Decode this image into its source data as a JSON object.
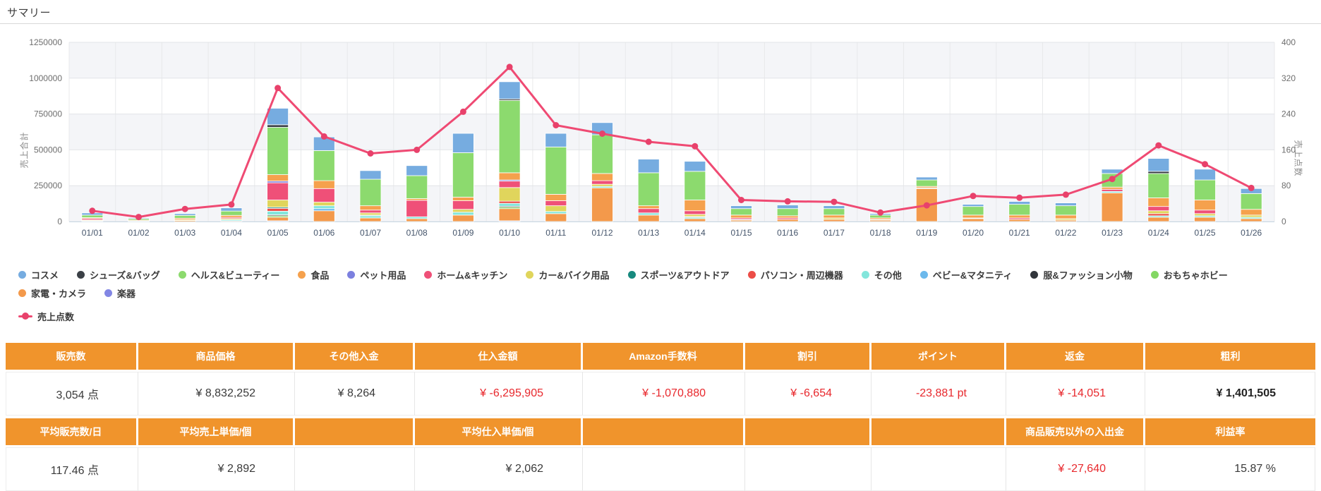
{
  "page": {
    "title": "サマリー"
  },
  "chart_data": {
    "type": "stacked-bar+line",
    "categories": [
      "01/01",
      "01/02",
      "01/03",
      "01/04",
      "01/05",
      "01/06",
      "01/07",
      "01/08",
      "01/09",
      "01/10",
      "01/11",
      "01/12",
      "01/13",
      "01/14",
      "01/15",
      "01/16",
      "01/17",
      "01/18",
      "01/19",
      "01/20",
      "01/21",
      "01/22",
      "01/23",
      "01/24",
      "01/25",
      "01/26"
    ],
    "bar_axis": {
      "title": "売上合計",
      "position": "left",
      "min": 0,
      "max": 1250000,
      "ticks": [
        1250000,
        1000000,
        750000,
        500000,
        250000,
        0
      ]
    },
    "line_axis": {
      "title": "売上点数",
      "position": "right",
      "min": 0,
      "max": 400,
      "ticks": [
        400,
        320,
        240,
        160,
        80,
        0
      ]
    },
    "grid": "on",
    "legend_position": "bottom",
    "series": [
      {
        "name": "コスメ",
        "color": "#76ACE0",
        "values": [
          15000,
          6000,
          12000,
          22000,
          115000,
          95000,
          60000,
          70000,
          135000,
          120000,
          95000,
          85000,
          95000,
          70000,
          20000,
          25000,
          20000,
          10000,
          20000,
          15000,
          20000,
          20000,
          30000,
          90000,
          75000,
          35000
        ]
      },
      {
        "name": "シューズ&バッグ",
        "color": "#3B4046",
        "values": [
          0,
          0,
          0,
          0,
          18000,
          0,
          0,
          0,
          0,
          10000,
          0,
          0,
          0,
          0,
          0,
          0,
          0,
          0,
          0,
          0,
          0,
          0,
          0,
          15000,
          0,
          0
        ]
      },
      {
        "name": "ヘルス&ビューティー",
        "color": "#8CDA6E",
        "values": [
          18000,
          10000,
          20000,
          30000,
          330000,
          210000,
          185000,
          160000,
          310000,
          505000,
          330000,
          270000,
          230000,
          200000,
          45000,
          50000,
          45000,
          20000,
          45000,
          60000,
          75000,
          65000,
          95000,
          170000,
          140000,
          110000
        ]
      },
      {
        "name": "食品",
        "color": "#F5A14D",
        "values": [
          6000,
          5000,
          10000,
          14000,
          45000,
          55000,
          30000,
          12000,
          25000,
          50000,
          45000,
          50000,
          20000,
          75000,
          20000,
          15000,
          20000,
          10000,
          10000,
          20000,
          20000,
          25000,
          15000,
          60000,
          70000,
          40000
        ]
      },
      {
        "name": "ペット用品",
        "color": "#7C80DF",
        "values": [
          0,
          0,
          0,
          0,
          12000,
          0,
          0,
          0,
          0,
          8000,
          0,
          0,
          0,
          0,
          0,
          0,
          0,
          0,
          0,
          0,
          0,
          0,
          0,
          0,
          0,
          0
        ]
      },
      {
        "name": "ホーム&キッチン",
        "color": "#EF5078",
        "values": [
          10000,
          0,
          0,
          8000,
          120000,
          95000,
          20000,
          115000,
          60000,
          45000,
          35000,
          25000,
          30000,
          25000,
          10000,
          10000,
          0,
          0,
          0,
          0,
          10000,
          0,
          15000,
          30000,
          25000,
          0
        ]
      },
      {
        "name": "カー&バイク用品",
        "color": "#E0D55C",
        "values": [
          5000,
          0,
          6000,
          8000,
          50000,
          25000,
          15000,
          0,
          20000,
          95000,
          40000,
          15000,
          0,
          15000,
          0,
          0,
          10000,
          0,
          0,
          0,
          0,
          10000,
          0,
          20000,
          15000,
          15000
        ]
      },
      {
        "name": "スポーツ&アウトドア",
        "color": "#17897E",
        "values": [
          0,
          0,
          0,
          0,
          8000,
          0,
          5000,
          0,
          0,
          0,
          0,
          0,
          0,
          0,
          0,
          0,
          0,
          0,
          0,
          0,
          0,
          0,
          0,
          0,
          0,
          0
        ]
      },
      {
        "name": "パソコン・周辺機器",
        "color": "#EC4D47",
        "values": [
          0,
          0,
          0,
          0,
          20000,
          0,
          0,
          0,
          0,
          15000,
          0,
          0,
          0,
          5000,
          0,
          0,
          0,
          0,
          0,
          0,
          0,
          0,
          0,
          15000,
          0,
          0
        ]
      },
      {
        "name": "その他",
        "color": "#83E6DC",
        "values": [
          3000,
          4000,
          0,
          8000,
          25000,
          20000,
          15000,
          13000,
          20000,
          20000,
          15000,
          10000,
          15000,
          10000,
          5000,
          0,
          0,
          5000,
          5000,
          5000,
          0,
          0,
          10000,
          10000,
          10000,
          10000
        ]
      },
      {
        "name": "ベビー&マタニティ",
        "color": "#6CB9EC",
        "values": [
          0,
          0,
          0,
          0,
          0,
          15000,
          0,
          0,
          0,
          0,
          0,
          0,
          0,
          0,
          0,
          0,
          0,
          0,
          0,
          0,
          0,
          0,
          0,
          0,
          0,
          0
        ]
      },
      {
        "name": "服&ファッション小物",
        "color": "#31353B",
        "values": [
          0,
          0,
          0,
          0,
          7000,
          0,
          0,
          0,
          0,
          7000,
          0,
          0,
          0,
          0,
          0,
          0,
          0,
          0,
          0,
          0,
          0,
          0,
          0,
          0,
          0,
          0
        ]
      },
      {
        "name": "おもちゃホビー",
        "color": "#83D763",
        "values": [
          0,
          0,
          0,
          0,
          10000,
          0,
          0,
          0,
          0,
          10000,
          0,
          0,
          0,
          0,
          0,
          0,
          0,
          0,
          0,
          0,
          0,
          0,
          0,
          0,
          0,
          0
        ]
      },
      {
        "name": "家電・カメラ",
        "color": "#F3994B",
        "values": [
          3000,
          0,
          7000,
          5000,
          25000,
          75000,
          25000,
          20000,
          45000,
          85000,
          55000,
          235000,
          45000,
          20000,
          10000,
          15000,
          15000,
          10000,
          230000,
          20000,
          15000,
          10000,
          200000,
          30000,
          30000,
          20000
        ]
      },
      {
        "name": "楽器",
        "color": "#8286E4",
        "values": [
          0,
          0,
          0,
          0,
          5000,
          0,
          0,
          0,
          0,
          5000,
          0,
          0,
          0,
          0,
          0,
          0,
          0,
          0,
          0,
          0,
          0,
          0,
          0,
          0,
          0,
          0
        ]
      }
    ],
    "line_series": {
      "name": "売上点数",
      "color": "#EF4A73",
      "marker_color": "#E8416B",
      "values": [
        24,
        10,
        28,
        38,
        298,
        190,
        152,
        160,
        245,
        345,
        215,
        196,
        178,
        168,
        48,
        45,
        44,
        20,
        36,
        57,
        53,
        60,
        95,
        170,
        128,
        75
      ]
    }
  },
  "table": {
    "headers_row1": [
      "販売数",
      "商品価格",
      "その他入金",
      "仕入金額",
      "Amazon手数料",
      "割引",
      "ポイント",
      "返金",
      "粗利"
    ],
    "values_row1": [
      "3,054 点",
      "¥ 8,832,252",
      "¥ 8,264",
      "¥ -6,295,905",
      "¥ -1,070,880",
      "¥ -6,654",
      "-23,881 pt",
      "¥ -14,051",
      "¥ 1,401,505"
    ],
    "headers_row2": [
      "平均販売数/日",
      "平均売上単価/個",
      "",
      "平均仕入単価/個",
      "",
      "",
      "",
      "商品販売以外の入出金",
      "利益率"
    ],
    "values_row2": [
      "117.46 点",
      "¥ 2,892",
      "",
      "¥ 2,062",
      "",
      "",
      "",
      "¥ -27,640",
      "15.87 %"
    ],
    "colors": {
      "header_bg": "#F0942C",
      "negative": "#e8282d"
    }
  }
}
